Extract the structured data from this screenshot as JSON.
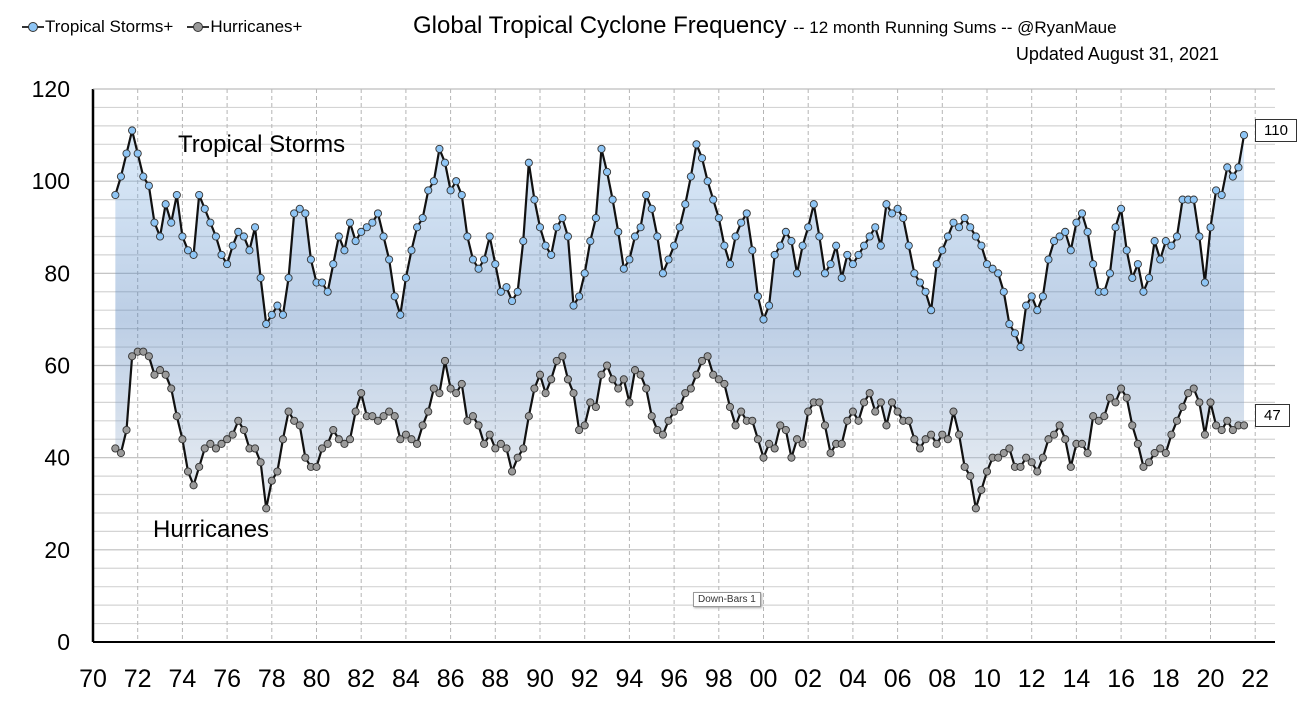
{
  "legend": {
    "tropical_storms": "Tropical Storms+",
    "hurricanes": "Hurricanes+"
  },
  "header": {
    "title": "Global Tropical Cyclone Frequency",
    "subtitle": "-- 12 month Running Sums -- @RyanMaue",
    "updated": "Updated August 31, 2021"
  },
  "tooltip": "Down-Bars 1",
  "chart_data": {
    "type": "line",
    "title": "Global Tropical Cyclone Frequency",
    "subtitle": "-- 12 month Running Sums -- @RyanMaue",
    "xlabel": "",
    "ylabel": "",
    "xlim": [
      1970,
      2022
    ],
    "ylim": [
      0,
      120
    ],
    "grid": true,
    "legend_position": "top-left",
    "x_tick_labels": [
      "70",
      "72",
      "74",
      "76",
      "78",
      "80",
      "82",
      "84",
      "86",
      "88",
      "90",
      "92",
      "94",
      "96",
      "98",
      "00",
      "02",
      "04",
      "06",
      "08",
      "10",
      "12",
      "14",
      "16",
      "18",
      "20",
      "22"
    ],
    "y_tick_labels": [
      "0",
      "20",
      "40",
      "60",
      "80",
      "100",
      "120"
    ],
    "annotations": {
      "tropical_storms": "Tropical Storms",
      "hurricanes": "Hurricanes",
      "last_tropical_storms": "110",
      "last_hurricanes": "47"
    },
    "colors": {
      "tropical_storms": "#8ec5f5",
      "hurricanes": "#9a9a9a",
      "line": "#111111",
      "bars": "#5b8fd0"
    },
    "x": [
      1971,
      1971.25,
      1971.5,
      1971.75,
      1972,
      1972.25,
      1972.5,
      1972.75,
      1973,
      1973.25,
      1973.5,
      1973.75,
      1974,
      1974.25,
      1974.5,
      1974.75,
      1975,
      1975.25,
      1975.5,
      1975.75,
      1976,
      1976.25,
      1976.5,
      1976.75,
      1977,
      1977.25,
      1977.5,
      1977.75,
      1978,
      1978.25,
      1978.5,
      1978.75,
      1979,
      1979.25,
      1979.5,
      1979.75,
      1980,
      1980.25,
      1980.5,
      1980.75,
      1981,
      1981.25,
      1981.5,
      1981.75,
      1982,
      1982.25,
      1982.5,
      1982.75,
      1983,
      1983.25,
      1983.5,
      1983.75,
      1984,
      1984.25,
      1984.5,
      1984.75,
      1985,
      1985.25,
      1985.5,
      1985.75,
      1986,
      1986.25,
      1986.5,
      1986.75,
      1987,
      1987.25,
      1987.5,
      1987.75,
      1988,
      1988.25,
      1988.5,
      1988.75,
      1989,
      1989.25,
      1989.5,
      1989.75,
      1990,
      1990.25,
      1990.5,
      1990.75,
      1991,
      1991.25,
      1991.5,
      1991.75,
      1992,
      1992.25,
      1992.5,
      1992.75,
      1993,
      1993.25,
      1993.5,
      1993.75,
      1994,
      1994.25,
      1994.5,
      1994.75,
      1995,
      1995.25,
      1995.5,
      1995.75,
      1996,
      1996.25,
      1996.5,
      1996.75,
      1997,
      1997.25,
      1997.5,
      1997.75,
      1998,
      1998.25,
      1998.5,
      1998.75,
      1999,
      1999.25,
      1999.5,
      1999.75,
      2000,
      2000.25,
      2000.5,
      2000.75,
      2001,
      2001.25,
      2001.5,
      2001.75,
      2002,
      2002.25,
      2002.5,
      2002.75,
      2003,
      2003.25,
      2003.5,
      2003.75,
      2004,
      2004.25,
      2004.5,
      2004.75,
      2005,
      2005.25,
      2005.5,
      2005.75,
      2006,
      2006.25,
      2006.5,
      2006.75,
      2007,
      2007.25,
      2007.5,
      2007.75,
      2008,
      2008.25,
      2008.5,
      2008.75,
      2009,
      2009.25,
      2009.5,
      2009.75,
      2010,
      2010.25,
      2010.5,
      2010.75,
      2011,
      2011.25,
      2011.5,
      2011.75,
      2012,
      2012.25,
      2012.5,
      2012.75,
      2013,
      2013.25,
      2013.5,
      2013.75,
      2014,
      2014.25,
      2014.5,
      2014.75,
      2015,
      2015.25,
      2015.5,
      2015.75,
      2016,
      2016.25,
      2016.5,
      2016.75,
      2017,
      2017.25,
      2017.5,
      2017.75,
      2018,
      2018.25,
      2018.5,
      2018.75,
      2019,
      2019.25,
      2019.5,
      2019.75,
      2020,
      2020.25,
      2020.5,
      2020.75,
      2021,
      2021.25,
      2021.5
    ],
    "series": [
      {
        "name": "Tropical Storms+",
        "values": [
          97,
          101,
          106,
          111,
          106,
          101,
          99,
          91,
          88,
          95,
          91,
          97,
          88,
          85,
          84,
          97,
          94,
          91,
          88,
          84,
          82,
          86,
          89,
          88,
          85,
          90,
          79,
          69,
          71,
          73,
          71,
          79,
          93,
          94,
          93,
          83,
          78,
          78,
          76,
          82,
          88,
          85,
          91,
          87,
          89,
          90,
          91,
          93,
          88,
          83,
          75,
          71,
          79,
          85,
          90,
          92,
          98,
          100,
          107,
          104,
          98,
          100,
          97,
          88,
          83,
          81,
          83,
          88,
          82,
          76,
          77,
          74,
          76,
          87,
          104,
          96,
          90,
          86,
          84,
          90,
          92,
          88,
          73,
          75,
          80,
          87,
          92,
          107,
          102,
          96,
          89,
          81,
          83,
          88,
          90,
          97,
          94,
          88,
          80,
          83,
          86,
          90,
          95,
          101,
          108,
          105,
          100,
          96,
          92,
          86,
          82,
          88,
          91,
          93,
          85,
          75,
          70,
          73,
          84,
          86,
          89,
          87,
          80,
          86,
          90,
          95,
          88,
          80,
          82,
          86,
          79,
          84,
          82,
          84,
          86,
          88,
          90,
          86,
          95,
          93,
          94,
          92,
          86,
          80,
          78,
          76,
          72,
          82,
          85,
          88,
          91,
          90,
          92,
          90,
          88,
          86,
          82,
          81,
          80,
          76,
          69,
          67,
          64,
          73,
          75,
          72,
          75,
          83,
          87,
          88,
          89,
          85,
          91,
          93,
          89,
          82,
          76,
          76,
          80,
          90,
          94,
          85,
          79,
          82,
          76,
          79,
          87,
          83,
          87,
          86,
          88,
          96,
          96,
          96,
          88,
          78,
          90,
          98,
          97,
          103,
          101,
          103,
          110
        ]
      },
      {
        "name": "Hurricanes+",
        "values": [
          42,
          41,
          46,
          62,
          63,
          63,
          62,
          58,
          59,
          58,
          55,
          49,
          44,
          37,
          34,
          38,
          42,
          43,
          42,
          43,
          44,
          45,
          48,
          46,
          42,
          42,
          39,
          29,
          35,
          37,
          44,
          50,
          48,
          47,
          40,
          38,
          38,
          42,
          43,
          46,
          44,
          43,
          44,
          50,
          54,
          49,
          49,
          48,
          49,
          50,
          49,
          44,
          45,
          44,
          43,
          47,
          50,
          55,
          54,
          61,
          55,
          54,
          56,
          48,
          49,
          47,
          43,
          45,
          42,
          43,
          42,
          37,
          40,
          42,
          49,
          55,
          58,
          54,
          57,
          61,
          62,
          57,
          54,
          46,
          47,
          52,
          51,
          58,
          60,
          57,
          55,
          57,
          52,
          59,
          58,
          55,
          49,
          46,
          45,
          48,
          50,
          51,
          54,
          55,
          58,
          61,
          62,
          58,
          57,
          56,
          51,
          47,
          50,
          48,
          48,
          44,
          40,
          43,
          42,
          47,
          46,
          40,
          44,
          43,
          50,
          52,
          52,
          47,
          41,
          43,
          43,
          48,
          50,
          48,
          52,
          54,
          50,
          52,
          47,
          52,
          50,
          48,
          48,
          44,
          42,
          44,
          45,
          43,
          45,
          44,
          50,
          45,
          38,
          36,
          29,
          33,
          37,
          40,
          40,
          41,
          42,
          38,
          38,
          40,
          39,
          37,
          40,
          44,
          45,
          47,
          44,
          38,
          43,
          43,
          41,
          49,
          48,
          49,
          53,
          52,
          55,
          53,
          47,
          43,
          38,
          39,
          41,
          42,
          41,
          45,
          48,
          51,
          54,
          55,
          52,
          45,
          52,
          47,
          46,
          48,
          46,
          47,
          47
        ]
      }
    ]
  }
}
